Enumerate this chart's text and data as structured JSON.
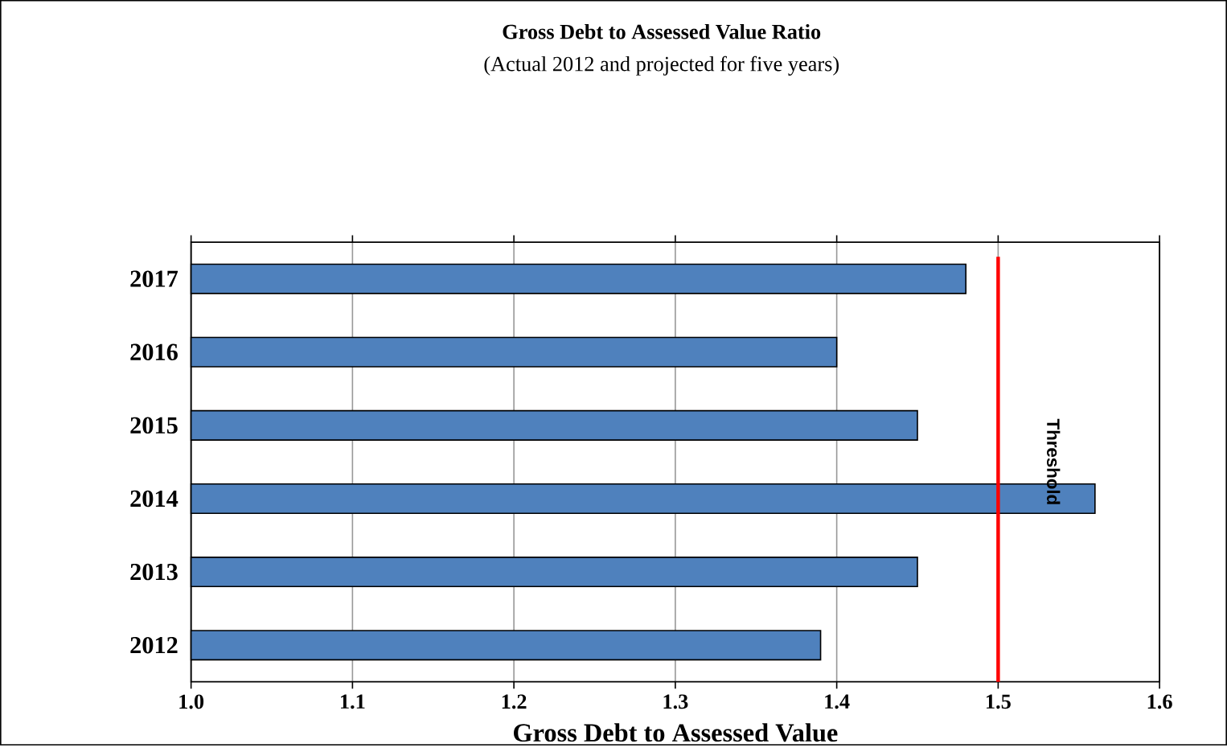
{
  "chart_data": {
    "type": "bar",
    "orientation": "horizontal",
    "title": "Gross Debt to Assessed Value Ratio",
    "subtitle": "(Actual 2012 and projected for five years)",
    "xlabel": "Gross Debt to Assessed Value",
    "categories": [
      "2017",
      "2016",
      "2015",
      "2014",
      "2013",
      "2012"
    ],
    "values": [
      1.48,
      1.4,
      1.45,
      1.56,
      1.45,
      1.39
    ],
    "color": "#4f81bd",
    "xlim": [
      1.0,
      1.6
    ],
    "xticks": [
      {
        "value": 1.0,
        "label": "1.0"
      },
      1.1,
      1.2,
      1.3,
      1.4,
      1.5,
      1.6
    ],
    "grid": "x",
    "ref_lines": [
      {
        "axis": "x",
        "value": 1.5,
        "label": "Threshold",
        "color": "#ff0000"
      }
    ]
  }
}
